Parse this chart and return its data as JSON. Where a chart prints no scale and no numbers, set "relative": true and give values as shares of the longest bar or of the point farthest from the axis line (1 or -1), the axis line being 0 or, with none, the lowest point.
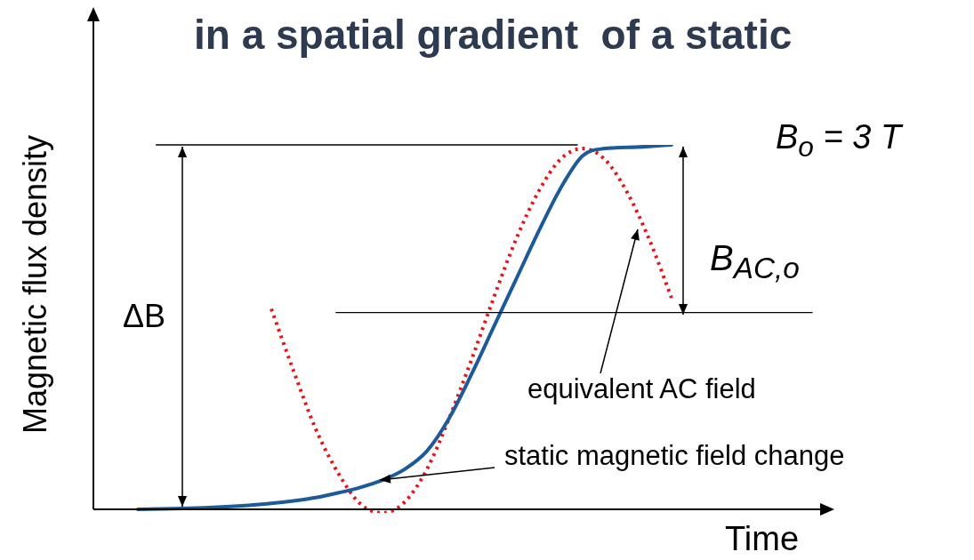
{
  "chart_data": {
    "type": "line",
    "relative": true,
    "title": "in a spatial gradient  of a static",
    "xlabel": "Time",
    "ylabel": "Magnetic flux density",
    "categories": [
      null,
      null,
      null,
      null,
      null,
      null,
      null,
      null,
      null,
      null,
      null,
      null,
      null,
      null,
      null,
      null,
      null,
      null,
      null,
      null,
      null,
      null,
      null,
      null,
      null,
      null,
      null,
      null,
      null,
      null,
      null,
      null,
      null,
      null
    ],
    "series": [
      {
        "color": "#1d5a99",
        "line_style": "solid",
        "values": [
          null,
          null,
          0,
          0.001,
          0.002,
          0.004,
          0.007,
          0.011,
          0.016,
          0.023,
          0.032,
          0.045,
          0.06,
          0.08,
          0.11,
          0.16,
          0.25,
          0.37,
          0.5,
          0.63,
          0.76,
          0.88,
          0.97,
          0.99,
          0.993,
          0.996,
          1,
          null,
          null,
          null,
          null,
          null,
          null,
          null
        ]
      },
      {
        "color": "#e8141c",
        "line_style": "dotted",
        "values": [
          null,
          null,
          null,
          null,
          null,
          null,
          null,
          null,
          0.55,
          0.38,
          0.22,
          0.1,
          0.015,
          -0.01,
          0.02,
          0.11,
          0.25,
          0.41,
          0.58,
          0.74,
          0.87,
          0.96,
          0.99,
          0.96,
          0.87,
          0.74,
          0.58,
          null,
          null,
          null,
          null,
          null,
          null,
          null
        ]
      }
    ],
    "ref_lines": [
      {
        "axis": "y",
        "value": 1,
        "color": "#000000"
      },
      {
        "axis": "y",
        "value": 0.54,
        "color": "#000000"
      }
    ],
    "annotations": [
      "ΔB",
      "B$_{AC,o}$",
      "B$_{o}$ = 3 T",
      "equivalent AC field",
      "static magnetic field change"
    ],
    "grid": false,
    "legend": false,
    "marker": "none",
    "tick_labels": false
  }
}
